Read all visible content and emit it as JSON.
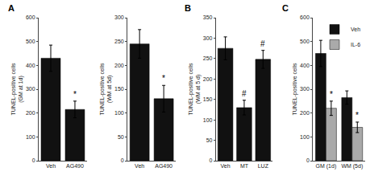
{
  "chart_data": [
    {
      "type": "bar",
      "title": "A",
      "categories": [
        "Veh",
        "AG490"
      ],
      "values": [
        430,
        215
      ],
      "errors": [
        55,
        35
      ],
      "color": "#111111",
      "ylabel": "TUNEL-positive cells\n(GM at 1d)",
      "ylim": [
        0,
        600
      ],
      "yticks": [
        0,
        100,
        200,
        300,
        400,
        500,
        600
      ],
      "grid": false,
      "annotations": [
        {
          "text": "*",
          "category": "AG490"
        }
      ]
    },
    {
      "type": "bar",
      "categories": [
        "Veh",
        "AG490"
      ],
      "values": [
        245,
        130
      ],
      "errors": [
        30,
        28
      ],
      "color": "#111111",
      "ylabel": "TUNEL-positive cells\n(WM at 5d)",
      "ylim": [
        0,
        300
      ],
      "yticks": [
        0,
        50,
        100,
        150,
        200,
        250,
        300
      ],
      "grid": false,
      "annotations": [
        {
          "text": "*",
          "category": "AG490"
        }
      ]
    },
    {
      "type": "bar",
      "title": "B",
      "categories": [
        "Veh",
        "MT",
        "LUZ"
      ],
      "values": [
        275,
        130,
        248
      ],
      "errors": [
        28,
        18,
        22
      ],
      "color": "#111111",
      "ylabel": "TUNEL-positive cells\n(WM at 5 d)",
      "ylim": [
        0,
        350
      ],
      "yticks": [
        0,
        50,
        100,
        150,
        200,
        250,
        300,
        350
      ],
      "grid": false,
      "annotations": [
        {
          "text": "#",
          "category": "MT"
        },
        {
          "text": "#",
          "category": "LUZ"
        }
      ]
    },
    {
      "type": "bar",
      "title": "C",
      "categories": [
        "GM (1d)",
        "WM (5d)"
      ],
      "series": [
        {
          "name": "Veh",
          "color": "#111111",
          "values": [
            450,
            265
          ],
          "errors": [
            55,
            28
          ]
        },
        {
          "name": "IL-6",
          "color": "#aaaaaa",
          "values": [
            220,
            140
          ],
          "errors": [
            30,
            22
          ]
        }
      ],
      "ylabel": "TUNEL-positive cells",
      "ylim": [
        0,
        600
      ],
      "yticks": [
        0,
        100,
        200,
        300,
        400,
        500,
        600
      ],
      "grid": false,
      "legend": "upper right",
      "annotations": [
        {
          "text": "*",
          "category": "GM (1d)",
          "series": "IL-6"
        },
        {
          "text": "*",
          "category": "WM (5d)",
          "series": "IL-6"
        }
      ]
    }
  ]
}
